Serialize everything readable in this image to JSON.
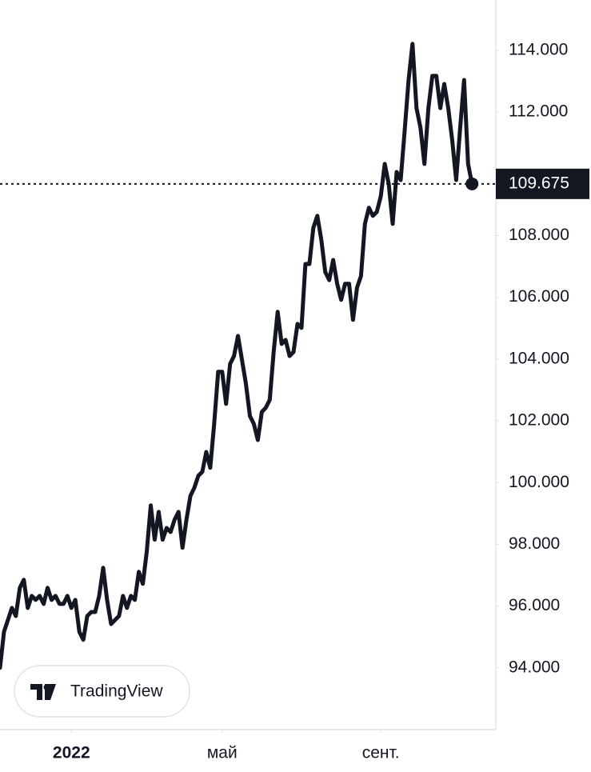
{
  "chart_data": {
    "type": "line",
    "watermark": "TradingView",
    "color": "#131722",
    "values": [
      94.0,
      95.17,
      95.55,
      95.94,
      95.68,
      96.59,
      96.85,
      95.94,
      96.33,
      96.2,
      96.33,
      96.07,
      96.59,
      96.2,
      96.33,
      96.07,
      96.07,
      96.33,
      95.94,
      96.2,
      95.17,
      94.91,
      95.68,
      95.81,
      95.81,
      96.33,
      97.24,
      96.2,
      95.42,
      95.55,
      95.68,
      96.33,
      95.94,
      96.33,
      96.2,
      97.11,
      96.72,
      97.76,
      99.26,
      98.15,
      99.05,
      98.15,
      98.53,
      98.4,
      98.79,
      99.05,
      97.89,
      98.79,
      99.57,
      99.83,
      100.22,
      100.35,
      100.99,
      100.48,
      101.9,
      103.59,
      103.59,
      102.55,
      103.84,
      104.1,
      104.75,
      103.97,
      103.2,
      102.16,
      101.9,
      101.38,
      102.29,
      102.42,
      102.68,
      104.23,
      105.53,
      104.49,
      104.62,
      104.1,
      104.23,
      105.14,
      105.01,
      107.08,
      107.08,
      108.25,
      108.64,
      107.86,
      106.82,
      106.56,
      107.21,
      106.44,
      105.92,
      106.44,
      106.44,
      105.27,
      106.31,
      106.69,
      108.38,
      108.9,
      108.64,
      108.77,
      109.28,
      110.32,
      109.67,
      108.38,
      110.06,
      109.8,
      111.36,
      113.04,
      114.21,
      112.13,
      111.49,
      110.32,
      112.13,
      113.17,
      113.17,
      112.13,
      112.91,
      112.13,
      111.1,
      109.8,
      111.49,
      113.04,
      110.32,
      109.675
    ],
    "xlim": [
      0,
      125
    ],
    "xticks": [
      {
        "value": 18,
        "label": "2022"
      },
      {
        "value": 56,
        "label": "май"
      },
      {
        "value": 96,
        "label": "сент."
      }
    ],
    "ylim": [
      92.0,
      115.63
    ],
    "yticks": [
      {
        "value": 94,
        "label": "94.000"
      },
      {
        "value": 96,
        "label": "96.000"
      },
      {
        "value": 98,
        "label": "98.000"
      },
      {
        "value": 100,
        "label": "100.000"
      },
      {
        "value": 102,
        "label": "102.000"
      },
      {
        "value": 104,
        "label": "104.000"
      },
      {
        "value": 106,
        "label": "106.000"
      },
      {
        "value": 108,
        "label": "108.000"
      },
      {
        "value": 112,
        "label": "112.000"
      },
      {
        "value": 114,
        "label": "114.000"
      }
    ]
  }
}
